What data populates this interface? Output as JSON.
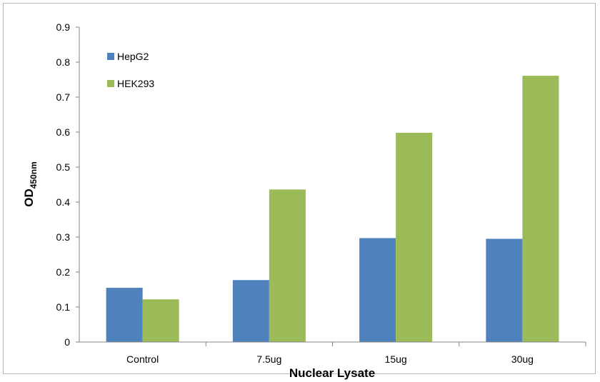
{
  "chart_data": {
    "type": "bar",
    "title": "",
    "xlabel": "Nuclear Lysate",
    "ylabel": {
      "main": "OD",
      "subscript": "450nm"
    },
    "categories": [
      "Control",
      "7.5ug",
      "15ug",
      "30ug"
    ],
    "series": [
      {
        "name": "HepG2",
        "color": "#4f81bd",
        "values": [
          0.155,
          0.177,
          0.297,
          0.295
        ]
      },
      {
        "name": "HEK293",
        "color": "#9bbb59",
        "values": [
          0.122,
          0.436,
          0.598,
          0.761
        ]
      }
    ],
    "ylim": [
      0,
      0.9
    ],
    "yticks": [
      "0",
      "0.1",
      "0.2",
      "0.3",
      "0.4",
      "0.5",
      "0.6",
      "0.7",
      "0.8",
      "0.9"
    ],
    "grid": false,
    "legend_position": "top-left"
  }
}
